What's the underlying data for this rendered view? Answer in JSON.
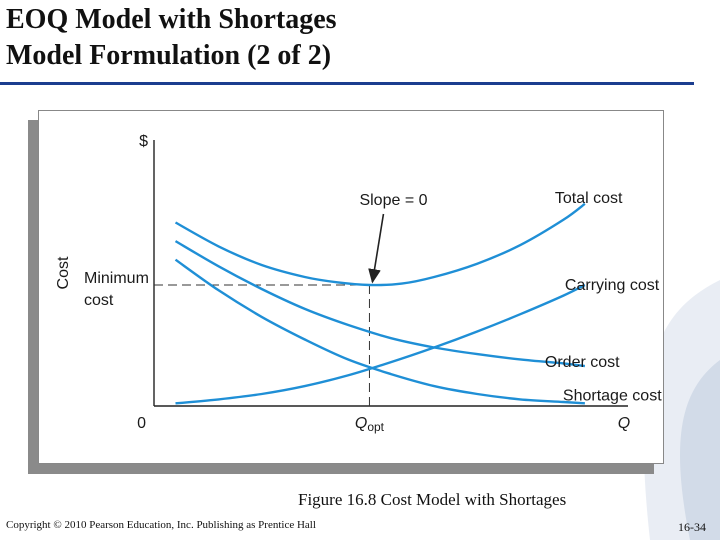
{
  "slide": {
    "title_line1": "EOQ Model with Shortages",
    "title_line2": "Model Formulation (2 of 2)",
    "caption": "Figure 16.8   Cost Model with Shortages",
    "copyright": "Copyright © 2010 Pearson Education, Inc. Publishing as Prentice Hall",
    "page_number": "16-34",
    "accent_color": "#1b3d8f"
  },
  "chart_data": {
    "type": "line",
    "title": "",
    "xlabel": "Q",
    "ylabel": "Cost",
    "y_unit_label": "$",
    "origin_label": "0",
    "x_marker": {
      "label_main": "Q",
      "label_sub": "opt",
      "x": 1.0
    },
    "xlim": [
      0,
      2.2
    ],
    "ylim": [
      0,
      2.0
    ],
    "series": [
      {
        "name": "Total cost",
        "x": [
          0.1,
          0.3,
          0.5,
          0.7,
          0.85,
          1.0,
          1.15,
          1.3,
          1.5,
          1.7,
          1.9,
          2.0
        ],
        "values": [
          1.38,
          1.2,
          1.06,
          0.97,
          0.93,
          0.91,
          0.92,
          0.97,
          1.07,
          1.21,
          1.4,
          1.52
        ]
      },
      {
        "name": "Carrying cost",
        "x": [
          0.1,
          0.3,
          0.5,
          0.7,
          0.9,
          1.1,
          1.3,
          1.5,
          1.7,
          1.9,
          2.0
        ],
        "values": [
          0.02,
          0.05,
          0.09,
          0.15,
          0.23,
          0.33,
          0.44,
          0.56,
          0.69,
          0.83,
          0.91
        ]
      },
      {
        "name": "Order cost",
        "x": [
          0.1,
          0.3,
          0.5,
          0.7,
          0.9,
          1.1,
          1.3,
          1.5,
          1.7,
          1.9,
          2.0
        ],
        "values": [
          1.24,
          1.05,
          0.88,
          0.73,
          0.61,
          0.51,
          0.44,
          0.39,
          0.35,
          0.32,
          0.3
        ]
      },
      {
        "name": "Shortage cost",
        "x": [
          0.1,
          0.3,
          0.5,
          0.7,
          0.9,
          1.1,
          1.3,
          1.5,
          1.7,
          1.9,
          2.0
        ],
        "values": [
          1.1,
          0.87,
          0.67,
          0.5,
          0.35,
          0.24,
          0.15,
          0.09,
          0.05,
          0.03,
          0.02
        ]
      }
    ],
    "annotations": [
      {
        "id": "slope",
        "text": "Slope = 0"
      },
      {
        "id": "minimum",
        "text_line1": "Minimum",
        "text_line2": "cost",
        "y": 0.91
      }
    ],
    "line_color": "#1f8fd6"
  }
}
